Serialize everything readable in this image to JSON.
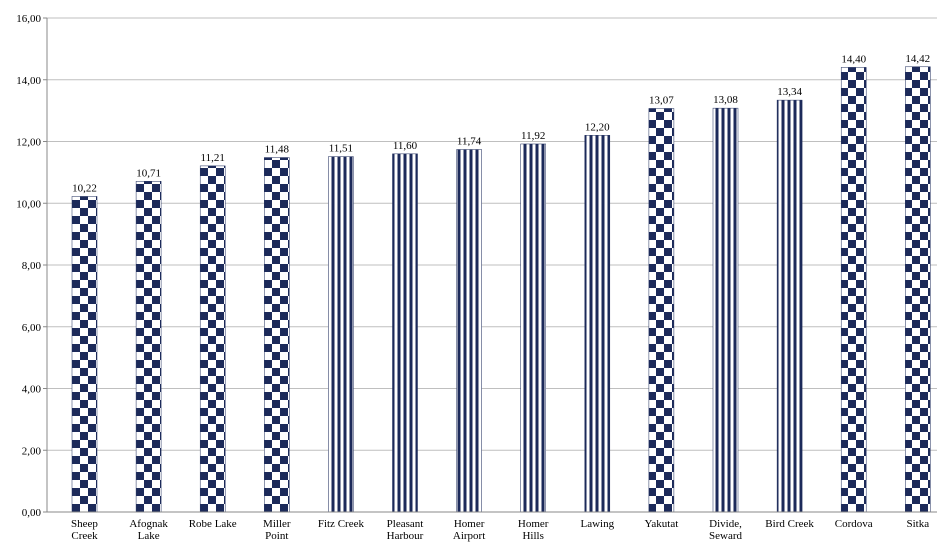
{
  "chart_data": {
    "type": "bar",
    "categories": [
      "Sheep\nCreek",
      "Afognak\nLake",
      "Robe Lake",
      "Miller\nPoint",
      "Fitz Creek",
      "Pleasant\nHarbour",
      "Homer\nAirport",
      "Homer\nHills",
      "Lawing",
      "Yakutat",
      "Divide,\nSeward",
      "Bird Creek",
      "Cordova",
      "Sitka"
    ],
    "values": [
      10.22,
      10.71,
      11.21,
      11.48,
      11.51,
      11.6,
      11.74,
      11.92,
      12.2,
      13.07,
      13.08,
      13.34,
      14.4,
      14.42
    ],
    "value_labels": [
      "10,22",
      "10,71",
      "11,21",
      "11,48",
      "11,51",
      "11,60",
      "11,74",
      "11,92",
      "12,20",
      "13,07",
      "13,08",
      "13,34",
      "14,40",
      "14,42"
    ],
    "patterns": [
      "checker",
      "checker",
      "checker",
      "checker",
      "stripes",
      "stripes",
      "stripes",
      "stripes",
      "stripes",
      "checker",
      "stripes",
      "stripes",
      "checker",
      "checker"
    ],
    "color": "#1c2a5a",
    "ylim": [
      0,
      16
    ],
    "yticks": [
      {
        "value": 0,
        "label": "0,00"
      },
      {
        "value": 2,
        "label": "2,00"
      },
      {
        "value": 4,
        "label": "4,00"
      },
      {
        "value": 6,
        "label": "6,00"
      },
      {
        "value": 8,
        "label": "8,00"
      },
      {
        "value": 10,
        "label": "10,00"
      },
      {
        "value": 12,
        "label": "12,00"
      },
      {
        "value": 14,
        "label": "14,00"
      },
      {
        "value": 16,
        "label": "16,00"
      }
    ],
    "grid": true
  }
}
